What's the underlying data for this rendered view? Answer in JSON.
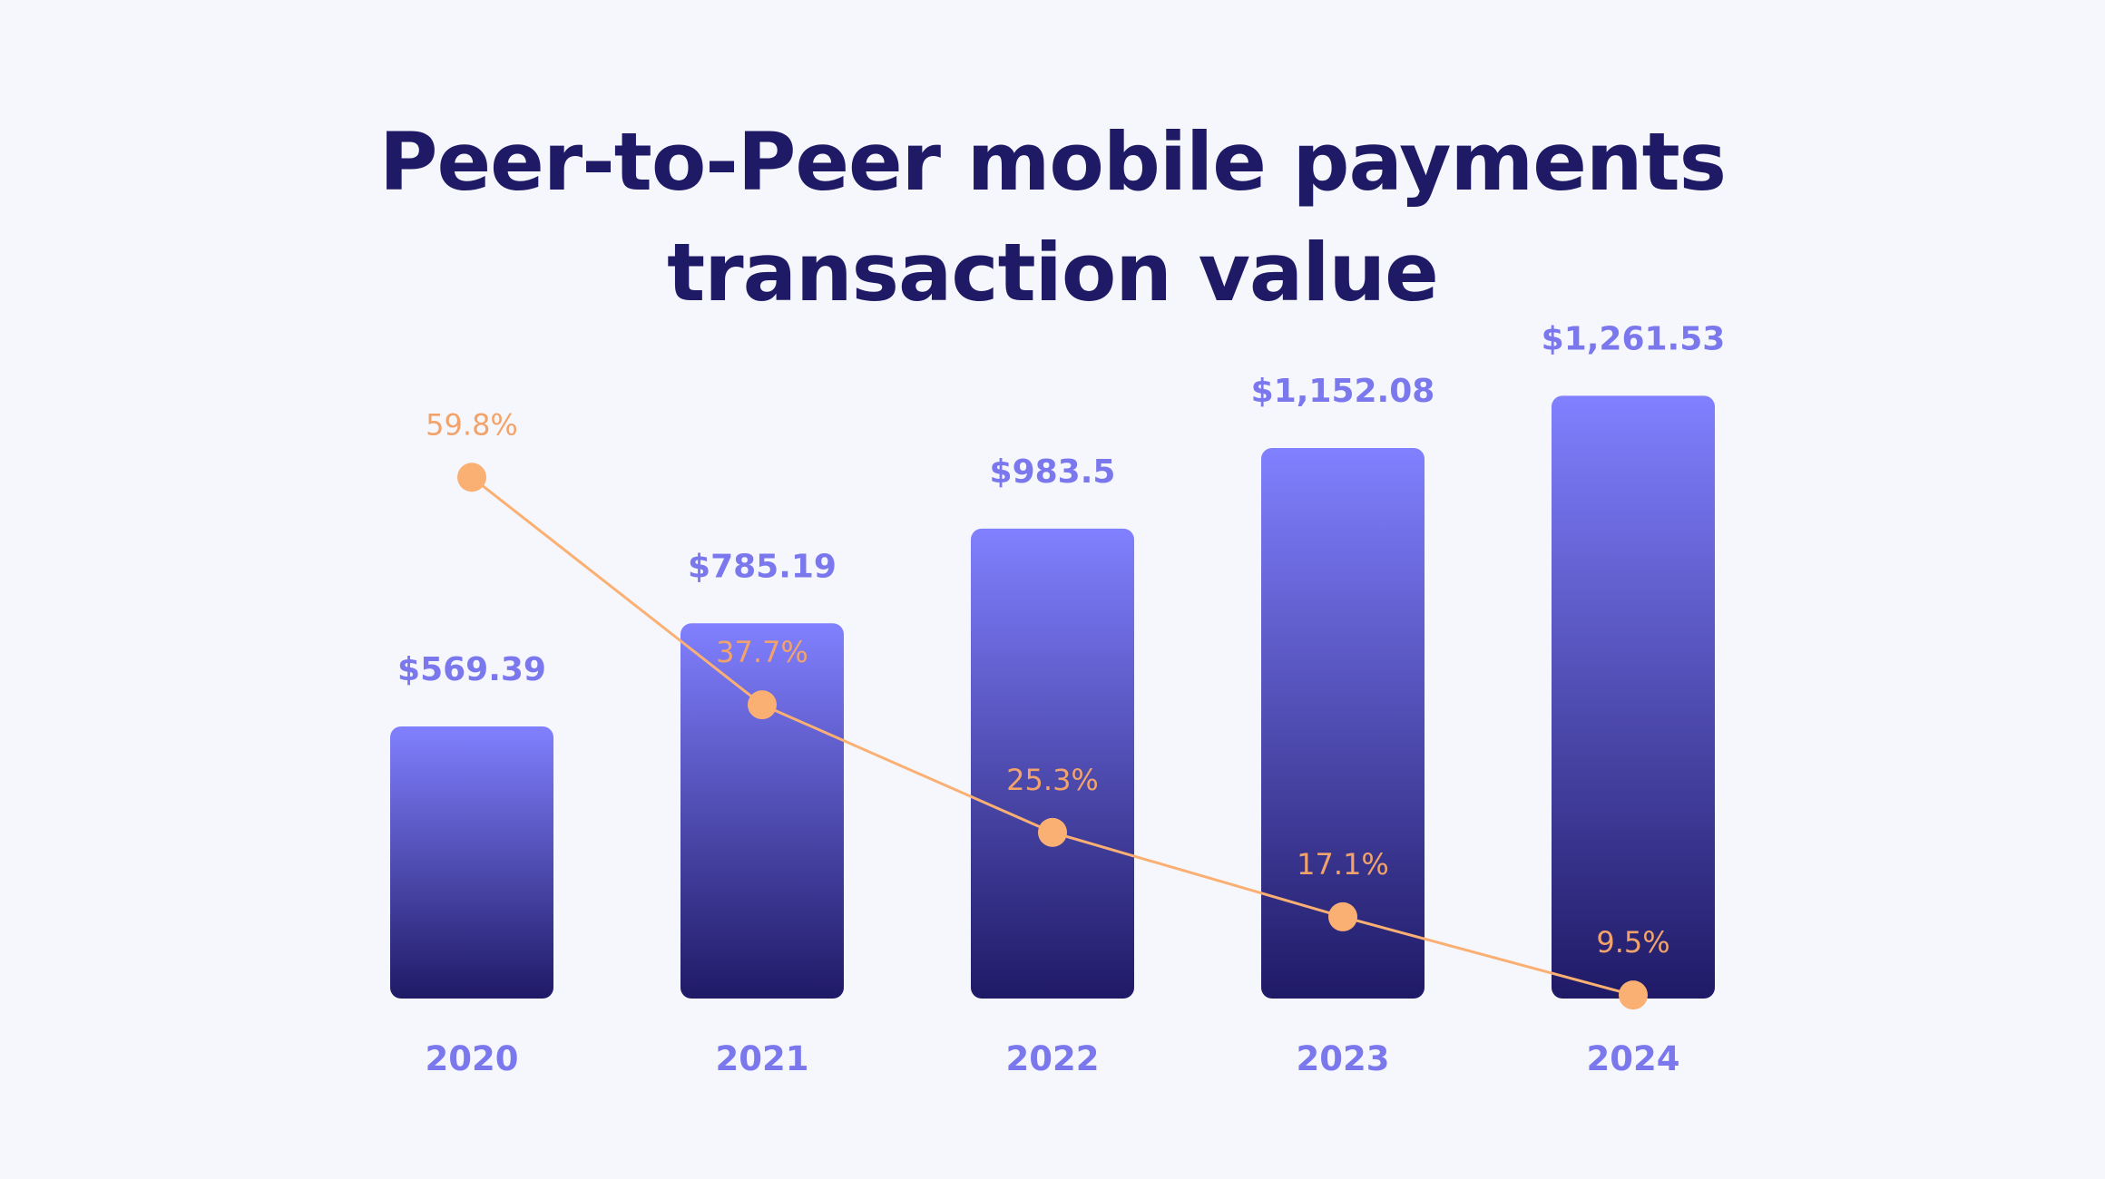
{
  "chart_data": {
    "type": "bar",
    "title_lines": [
      "Peer-to-Peer mobile payments",
      "transaction value"
    ],
    "categories": [
      "2020",
      "2021",
      "2022",
      "2023",
      "2024"
    ],
    "series": [
      {
        "kind": "bar",
        "values": [
          569.39,
          785.19,
          983.5,
          1152.08,
          1261.53
        ],
        "labels": [
          "$569.39",
          "$785.19",
          "$983.5",
          "$1,152.08",
          "$1,261.53"
        ]
      },
      {
        "kind": "line",
        "values": [
          59.8,
          37.7,
          25.3,
          17.1,
          9.5
        ],
        "labels": [
          "59.8%",
          "37.7%",
          "25.3%",
          "17.1%",
          "9.5%"
        ]
      }
    ],
    "xlabel": "",
    "ylabel": "",
    "grid": false,
    "legend": "none",
    "colors": {
      "bar_top": "#8180ff",
      "bar_bottom": "#1f1a66",
      "bar_label": "#7b78ee",
      "line": "#fbb073",
      "line_label": "#f2a36b",
      "tick_label": "#7b78ee",
      "title": "#1f1a66",
      "background": "#f6f7fd"
    }
  }
}
